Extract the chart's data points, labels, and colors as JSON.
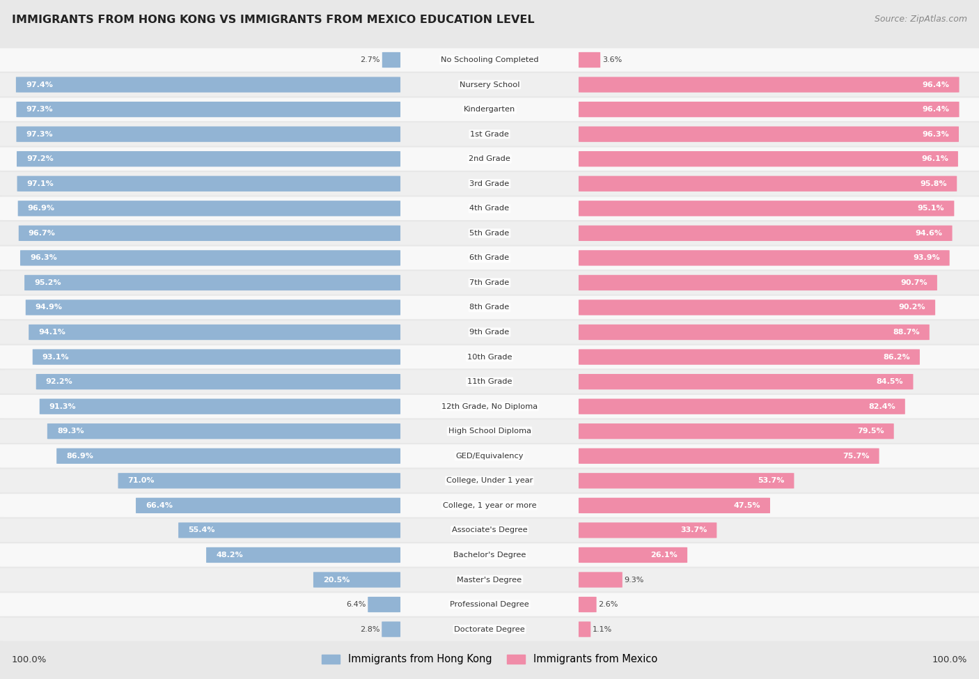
{
  "title": "IMMIGRANTS FROM HONG KONG VS IMMIGRANTS FROM MEXICO EDUCATION LEVEL",
  "source": "Source: ZipAtlas.com",
  "hk_color": "#92b4d4",
  "mx_color": "#f08ca8",
  "bg_color": "#e8e8e8",
  "row_bg": "#f8f8f8",
  "row_bg_alt": "#efefef",
  "categories": [
    "No Schooling Completed",
    "Nursery School",
    "Kindergarten",
    "1st Grade",
    "2nd Grade",
    "3rd Grade",
    "4th Grade",
    "5th Grade",
    "6th Grade",
    "7th Grade",
    "8th Grade",
    "9th Grade",
    "10th Grade",
    "11th Grade",
    "12th Grade, No Diploma",
    "High School Diploma",
    "GED/Equivalency",
    "College, Under 1 year",
    "College, 1 year or more",
    "Associate's Degree",
    "Bachelor's Degree",
    "Master's Degree",
    "Professional Degree",
    "Doctorate Degree"
  ],
  "hk_values": [
    2.7,
    97.4,
    97.3,
    97.3,
    97.2,
    97.1,
    96.9,
    96.7,
    96.3,
    95.2,
    94.9,
    94.1,
    93.1,
    92.2,
    91.3,
    89.3,
    86.9,
    71.0,
    66.4,
    55.4,
    48.2,
    20.5,
    6.4,
    2.8
  ],
  "mx_values": [
    3.6,
    96.4,
    96.4,
    96.3,
    96.1,
    95.8,
    95.1,
    94.6,
    93.9,
    90.7,
    90.2,
    88.7,
    86.2,
    84.5,
    82.4,
    79.5,
    75.7,
    53.7,
    47.5,
    33.7,
    26.1,
    9.3,
    2.6,
    1.1
  ],
  "hk_inside_threshold": 15.0,
  "mx_inside_threshold": 15.0,
  "legend_hk": "Immigrants from Hong Kong",
  "legend_mx": "Immigrants from Mexico",
  "left_label": "100.0%",
  "right_label": "100.0%"
}
